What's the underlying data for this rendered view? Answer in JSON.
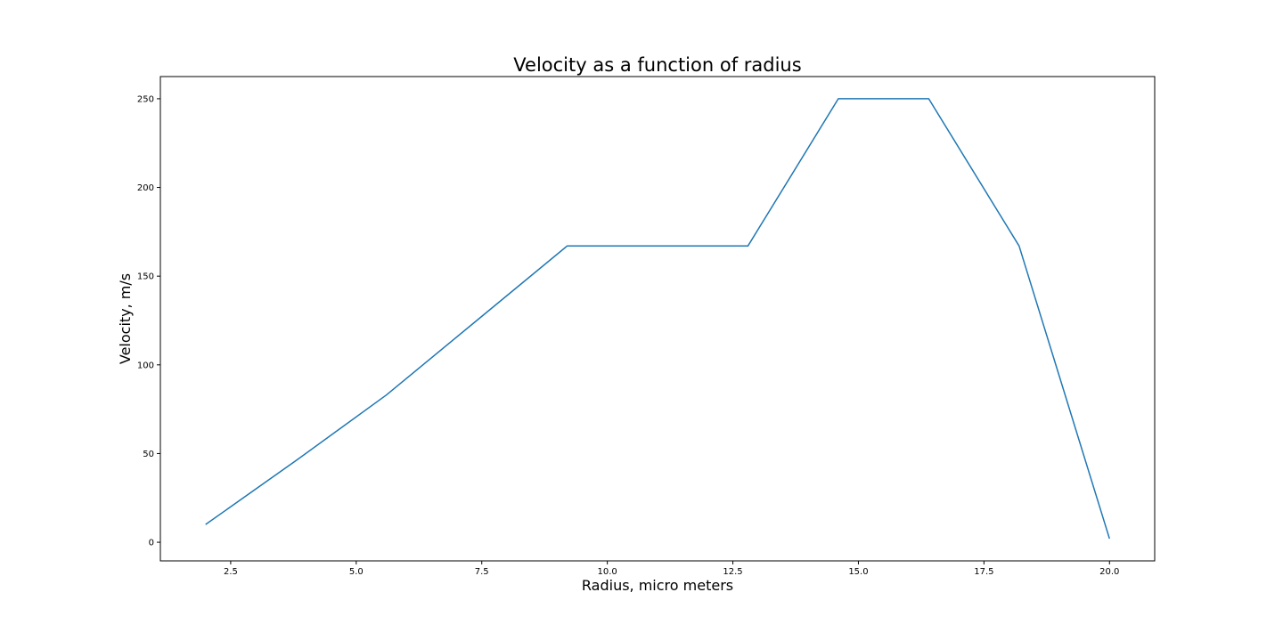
{
  "chart_data": {
    "type": "line",
    "title": "Velocity as a function of radius",
    "xlabel": "Radius, micro meters",
    "ylabel": "Velocity, m/s",
    "xlim": [
      1.1,
      20.9
    ],
    "ylim": [
      -10.5,
      262.5
    ],
    "xticks": [
      2.5,
      5.0,
      7.5,
      10.0,
      12.5,
      15.0,
      17.5,
      20.0
    ],
    "xtick_labels": [
      "2.5",
      "5.0",
      "7.5",
      "10.0",
      "12.5",
      "15.0",
      "17.5",
      "20.0"
    ],
    "yticks": [
      0,
      50,
      100,
      150,
      200,
      250
    ],
    "ytick_labels": [
      "0",
      "50",
      "100",
      "150",
      "200",
      "250"
    ],
    "grid": false,
    "series": [
      {
        "color": "#1f77b4",
        "x": [
          2.0,
          3.8,
          5.6,
          7.4,
          9.2,
          11.0,
          12.8,
          14.6,
          16.4,
          18.2,
          20.0
        ],
        "y": [
          10,
          46,
          83,
          125,
          167,
          167,
          167,
          250,
          250,
          167,
          2
        ]
      }
    ]
  }
}
